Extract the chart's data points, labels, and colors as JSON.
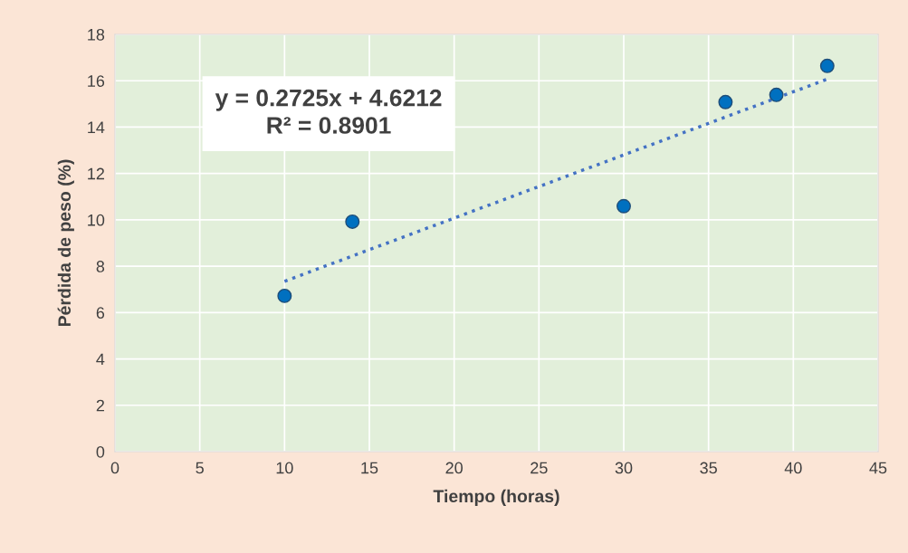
{
  "chart_data": {
    "type": "scatter",
    "xlabel": "Tiempo (horas)",
    "ylabel": "Pérdida de peso (%)",
    "x": [
      10,
      14,
      30,
      36,
      39,
      42
    ],
    "series": [
      {
        "type": "scatter",
        "color": "#0070c0",
        "values": [
          6.72,
          9.92,
          10.59,
          15.08,
          15.39,
          16.64
        ],
        "marker": "circle"
      },
      {
        "type": "line",
        "color": "#4472c4",
        "x": [
          10,
          42
        ],
        "values": [
          7.35,
          16.07
        ],
        "line_style": "dotted",
        "marker": "none"
      }
    ],
    "xlim": [
      0,
      45
    ],
    "xticks": [
      0,
      5,
      10,
      15,
      20,
      25,
      30,
      35,
      40,
      45
    ],
    "ylim": [
      0,
      18
    ],
    "yticks": [
      0,
      2,
      4,
      6,
      8,
      10,
      12,
      14,
      16,
      18
    ],
    "grid": true,
    "legend": false,
    "annotations": [
      "y = 0.2725x + 4.6212",
      "R² = 0.8901"
    ]
  }
}
